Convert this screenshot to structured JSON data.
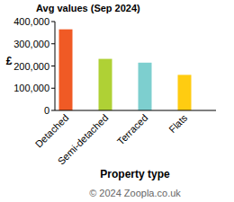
{
  "chart_data": {
    "type": "bar",
    "title": "Avg values (Sep 2024)",
    "x_label": "Property type",
    "y_label": "£",
    "annotations": [
      "© 2024 Zoopla.co.uk"
    ],
    "categories": [
      "Detached",
      "Semi-detached",
      "Terraced",
      "Flats"
    ],
    "values": [
      365000,
      232000,
      215000,
      160000
    ],
    "colors": [
      "#f05a25",
      "#afd135",
      "#7dcfcf",
      "#ffcc11"
    ],
    "ylim": [
      0,
      400000
    ],
    "yticks": [
      0,
      {
        "value": 100000,
        "label": "100,000"
      },
      {
        "value": 200000,
        "label": "200,000"
      },
      {
        "value": 300000,
        "label": "300,000"
      },
      {
        "value": 400000,
        "label": "400,000"
      }
    ],
    "grid": false
  }
}
